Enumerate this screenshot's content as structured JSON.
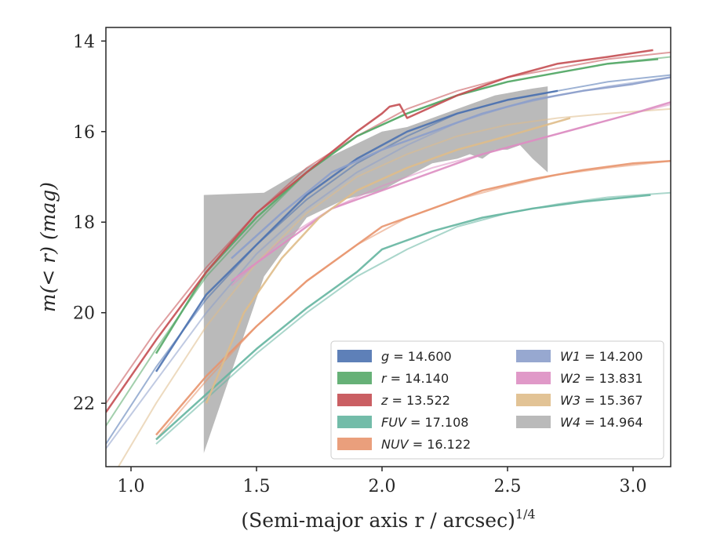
{
  "chart_data": {
    "type": "line",
    "xlabel": "(Semi-major axis r / arcsec)",
    "xlabel_power": "1/4",
    "ylabel": "m(< r) (mag)",
    "xlim": [
      0.9,
      3.15
    ],
    "ylim": [
      23.4,
      13.7
    ],
    "y_inverted": true,
    "grid": false,
    "legend_position": "lower-right",
    "legend_columns": 2,
    "x_ticks": [
      1.0,
      1.5,
      2.0,
      2.5,
      3.0
    ],
    "x_tick_labels": [
      "1.0",
      "1.5",
      "2.0",
      "2.5",
      "3.0"
    ],
    "y_ticks": [
      14,
      16,
      18,
      20,
      22
    ],
    "y_tick_labels": [
      "14",
      "16",
      "18",
      "20",
      "22"
    ],
    "series": [
      {
        "name": "g",
        "label": "g = 14.600",
        "color": "#4c72b0",
        "data": [
          [
            1.1,
            21.3
          ],
          [
            1.3,
            19.6
          ],
          [
            1.5,
            18.5
          ],
          [
            1.7,
            17.4
          ],
          [
            1.9,
            16.6
          ],
          [
            2.1,
            16.0
          ],
          [
            2.3,
            15.6
          ],
          [
            2.5,
            15.3
          ],
          [
            2.7,
            15.1
          ]
        ],
        "model": [
          [
            0.9,
            22.9
          ],
          [
            1.1,
            21.2
          ],
          [
            1.3,
            19.7
          ],
          [
            1.5,
            18.5
          ],
          [
            1.7,
            17.5
          ],
          [
            1.9,
            16.7
          ],
          [
            2.1,
            16.1
          ],
          [
            2.3,
            15.6
          ],
          [
            2.5,
            15.3
          ],
          [
            2.7,
            15.1
          ],
          [
            2.9,
            14.9
          ],
          [
            3.15,
            14.75
          ]
        ]
      },
      {
        "name": "r",
        "label": "r = 14.140",
        "color": "#55a868",
        "data": [
          [
            1.1,
            20.9
          ],
          [
            1.3,
            19.1
          ],
          [
            1.5,
            17.9
          ],
          [
            1.7,
            16.9
          ],
          [
            1.9,
            16.1
          ],
          [
            2.1,
            15.6
          ],
          [
            2.3,
            15.2
          ],
          [
            2.5,
            14.9
          ],
          [
            2.7,
            14.7
          ],
          [
            2.9,
            14.5
          ],
          [
            3.1,
            14.4
          ]
        ],
        "model": [
          [
            0.9,
            22.5
          ],
          [
            1.1,
            20.8
          ],
          [
            1.3,
            19.2
          ],
          [
            1.5,
            18.0
          ],
          [
            1.7,
            16.9
          ],
          [
            1.9,
            16.1
          ],
          [
            2.1,
            15.6
          ],
          [
            2.3,
            15.2
          ],
          [
            2.5,
            14.9
          ],
          [
            2.7,
            14.7
          ],
          [
            2.9,
            14.5
          ],
          [
            3.15,
            14.35
          ]
        ]
      },
      {
        "name": "z",
        "label": "z = 13.522",
        "color": "#c44e52",
        "data": [
          [
            0.9,
            22.2
          ],
          [
            1.1,
            20.6
          ],
          [
            1.3,
            19.1
          ],
          [
            1.5,
            17.8
          ],
          [
            1.7,
            16.9
          ],
          [
            1.9,
            16.0
          ],
          [
            2.0,
            15.6
          ],
          [
            2.03,
            15.45
          ],
          [
            2.07,
            15.4
          ],
          [
            2.1,
            15.7
          ],
          [
            2.3,
            15.2
          ],
          [
            2.5,
            14.8
          ],
          [
            2.7,
            14.5
          ],
          [
            2.9,
            14.35
          ],
          [
            3.08,
            14.2
          ]
        ],
        "model": [
          [
            0.9,
            22.0
          ],
          [
            1.1,
            20.4
          ],
          [
            1.3,
            19.0
          ],
          [
            1.5,
            17.8
          ],
          [
            1.7,
            16.8
          ],
          [
            1.9,
            16.1
          ],
          [
            2.1,
            15.5
          ],
          [
            2.3,
            15.1
          ],
          [
            2.5,
            14.8
          ],
          [
            2.7,
            14.6
          ],
          [
            2.9,
            14.4
          ],
          [
            3.15,
            14.25
          ]
        ]
      },
      {
        "name": "FUV",
        "label": "FUV = 17.108",
        "color": "#64b5a0",
        "data": [
          [
            1.1,
            22.8
          ],
          [
            1.3,
            21.8
          ],
          [
            1.5,
            20.8
          ],
          [
            1.7,
            19.9
          ],
          [
            1.9,
            19.1
          ],
          [
            2.0,
            18.6
          ],
          [
            2.2,
            18.2
          ],
          [
            2.4,
            17.9
          ],
          [
            2.6,
            17.7
          ],
          [
            2.8,
            17.55
          ],
          [
            3.07,
            17.4
          ]
        ],
        "model": [
          [
            1.1,
            22.9
          ],
          [
            1.3,
            21.9
          ],
          [
            1.5,
            20.9
          ],
          [
            1.7,
            20.0
          ],
          [
            1.9,
            19.2
          ],
          [
            2.1,
            18.6
          ],
          [
            2.3,
            18.1
          ],
          [
            2.5,
            17.8
          ],
          [
            2.7,
            17.6
          ],
          [
            2.9,
            17.45
          ],
          [
            3.15,
            17.35
          ]
        ]
      },
      {
        "name": "NUV",
        "label": "NUV = 16.122",
        "color": "#e8956e",
        "data": [
          [
            1.1,
            22.7
          ],
          [
            1.3,
            21.4
          ],
          [
            1.5,
            20.3
          ],
          [
            1.7,
            19.3
          ],
          [
            1.9,
            18.5
          ],
          [
            2.0,
            18.1
          ],
          [
            2.2,
            17.7
          ],
          [
            2.4,
            17.3
          ],
          [
            2.6,
            17.05
          ],
          [
            2.8,
            16.85
          ],
          [
            3.0,
            16.7
          ],
          [
            3.15,
            16.65
          ]
        ],
        "model": [
          [
            1.1,
            22.8
          ],
          [
            1.3,
            21.5
          ],
          [
            1.5,
            20.3
          ],
          [
            1.7,
            19.3
          ],
          [
            1.9,
            18.5
          ],
          [
            2.1,
            17.9
          ],
          [
            2.3,
            17.5
          ],
          [
            2.5,
            17.2
          ],
          [
            2.7,
            16.95
          ],
          [
            2.9,
            16.8
          ],
          [
            3.15,
            16.65
          ]
        ]
      },
      {
        "name": "W1",
        "label": "W1 = 14.200",
        "color": "#8c9fcb",
        "data": [
          [
            1.4,
            18.8
          ],
          [
            1.6,
            17.8
          ],
          [
            1.8,
            16.9
          ],
          [
            2.0,
            16.4
          ],
          [
            2.2,
            16.0
          ],
          [
            2.4,
            15.6
          ],
          [
            2.6,
            15.3
          ],
          [
            2.8,
            15.1
          ],
          [
            3.0,
            14.95
          ],
          [
            3.15,
            14.8
          ]
        ],
        "model": [
          [
            0.9,
            23.0
          ],
          [
            1.1,
            21.5
          ],
          [
            1.3,
            20.0
          ],
          [
            1.5,
            18.7
          ],
          [
            1.7,
            17.7
          ],
          [
            1.9,
            16.9
          ],
          [
            2.1,
            16.3
          ],
          [
            2.3,
            15.8
          ],
          [
            2.5,
            15.45
          ],
          [
            2.7,
            15.2
          ],
          [
            2.9,
            15.0
          ],
          [
            3.15,
            14.8
          ]
        ]
      },
      {
        "name": "W2",
        "label": "W2 = 13.831",
        "color": "#dd8ec2",
        "data": [
          [
            1.4,
            19.3
          ],
          [
            1.6,
            18.5
          ],
          [
            1.8,
            17.7
          ],
          [
            2.0,
            17.3
          ],
          [
            2.2,
            16.9
          ],
          [
            2.4,
            16.5
          ],
          [
            2.6,
            16.2
          ],
          [
            2.8,
            15.9
          ],
          [
            3.0,
            15.6
          ],
          [
            3.15,
            15.35
          ]
        ],
        "model": [
          [
            1.4,
            19.4
          ],
          [
            1.6,
            18.4
          ],
          [
            1.8,
            17.7
          ],
          [
            2.0,
            17.2
          ],
          [
            2.2,
            16.8
          ],
          [
            2.4,
            16.5
          ],
          [
            2.6,
            16.2
          ],
          [
            2.8,
            15.9
          ],
          [
            3.0,
            15.6
          ],
          [
            3.15,
            15.4
          ]
        ]
      },
      {
        "name": "W3",
        "label": "W3 = 15.367",
        "color": "#dfbc8a",
        "data": [
          [
            1.3,
            22.0
          ],
          [
            1.45,
            20.0
          ],
          [
            1.6,
            18.8
          ],
          [
            1.75,
            17.9
          ],
          [
            1.9,
            17.3
          ],
          [
            2.1,
            16.8
          ],
          [
            2.3,
            16.4
          ],
          [
            2.5,
            16.1
          ],
          [
            2.75,
            15.7
          ]
        ],
        "model": [
          [
            0.95,
            23.4
          ],
          [
            1.1,
            22.0
          ],
          [
            1.3,
            20.3
          ],
          [
            1.5,
            18.9
          ],
          [
            1.7,
            17.8
          ],
          [
            1.9,
            17.0
          ],
          [
            2.1,
            16.5
          ],
          [
            2.3,
            16.1
          ],
          [
            2.5,
            15.85
          ],
          [
            2.7,
            15.7
          ],
          [
            2.9,
            15.6
          ],
          [
            3.15,
            15.5
          ]
        ]
      },
      {
        "name": "W4",
        "label": "W4 = 14.964",
        "color": "#b3b3b3",
        "band_x": [
          1.29,
          1.53,
          1.7,
          1.85,
          2.0,
          2.1,
          2.2,
          2.3,
          2.35,
          2.4,
          2.45,
          2.5,
          2.55,
          2.6,
          2.66
        ],
        "band_lower": [
          23.1,
          19.2,
          17.9,
          17.5,
          17.3,
          17.0,
          16.7,
          16.6,
          16.5,
          16.6,
          16.4,
          16.4,
          16.3,
          16.6,
          16.9
        ],
        "band_upper": [
          17.4,
          17.35,
          16.8,
          16.4,
          16.0,
          15.9,
          15.7,
          15.5,
          15.4,
          15.3,
          15.2,
          15.15,
          15.1,
          15.05,
          15.0
        ]
      }
    ],
    "legend": [
      {
        "key": "g",
        "label": "g = 14.600"
      },
      {
        "key": "r",
        "label": "r = 14.140"
      },
      {
        "key": "z",
        "label": "z = 13.522"
      },
      {
        "key": "FUV",
        "label": "FUV = 17.108"
      },
      {
        "key": "NUV",
        "label": "NUV = 16.122"
      },
      {
        "key": "W1",
        "label": "W1 = 14.200"
      },
      {
        "key": "W2",
        "label": "W2 = 13.831"
      },
      {
        "key": "W3",
        "label": "W3 = 15.367"
      },
      {
        "key": "W4",
        "label": "W4 = 14.964"
      }
    ]
  }
}
